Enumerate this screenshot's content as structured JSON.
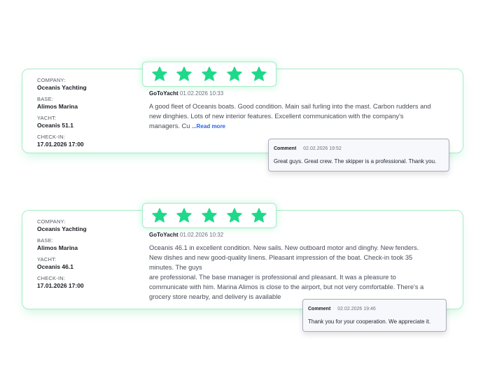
{
  "accent_color": "#1ed98a",
  "labels": {
    "company": "COMPANY:",
    "base": "BASE:",
    "yacht": "YACHT:",
    "checkin": "CHECK-IN:",
    "comment": "Comment",
    "read_more": "...Read more"
  },
  "reviews": [
    {
      "company": "Oceanis Yachting",
      "base": "Alimos Marina",
      "yacht": "Oceanis 51.1",
      "checkin": "17.01.2026 17:00",
      "rating": 5,
      "author": "GoToYacht",
      "date": "01.02.2026 10:33",
      "lines": [
        "A good fleet of Oceanis boats. Good condition. Main sail furling into the mast. Carbon rudders and",
        "new dinghies. Lots of new interior features. Excellent communication with the company's",
        "managers. Cu "
      ],
      "comment": {
        "date": "02.02.2026 19:52",
        "text": "Great guys. Great crew. The skipper is a professional. Thank you."
      }
    },
    {
      "company": "Oceanis Yachting",
      "base": "Alimos Marina",
      "yacht": "Oceanis 46.1",
      "checkin": "17.01.2026 17:00",
      "rating": 5,
      "author": "GoToYacht",
      "date": "01.02.2026 10:32",
      "lines": [
        "Oceanis 46.1 in excellent condition. New sails. New outboard motor and dinghy. New fenders.",
        "New dishes and new good-quality linens. Pleasant impression of the boat. Check-in took 35",
        "minutes. The guys",
        "are professional. The base manager is professional and pleasant. It was a pleasure to",
        "communicate with him. Marina Alimos is close to the airport, but not very comfortable. There's a",
        "grocery store nearby, and delivery is available"
      ],
      "comment": {
        "date": "02.02.2026 19:46",
        "text": "Thank you for your cooperation. We appreciate it."
      }
    }
  ]
}
